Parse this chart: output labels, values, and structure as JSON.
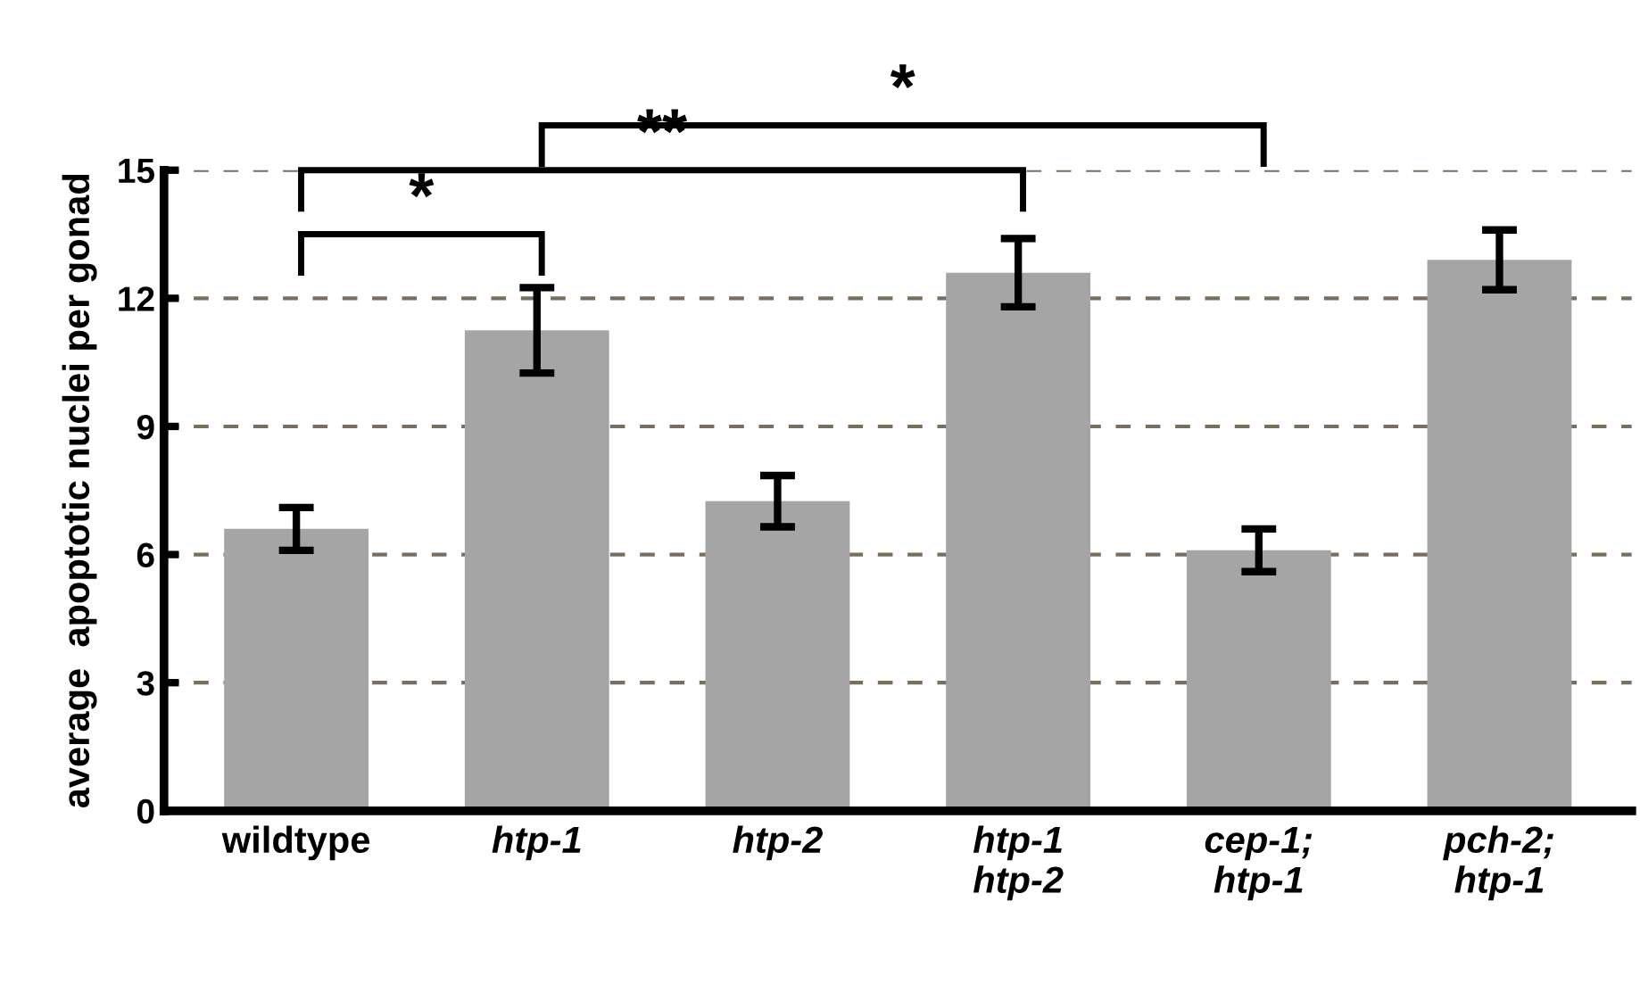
{
  "chart_data": {
    "type": "bar",
    "ylabel": "average  apoptotic nuclei per gonad",
    "categories": [
      "wildtype",
      "htp-1",
      "htp-2",
      "htp-1\nhtp-2",
      "cep-1;\nhtp-1",
      "pch-2;\nhtp-1"
    ],
    "values": [
      6.6,
      11.25,
      7.25,
      12.6,
      6.1,
      12.9
    ],
    "errors": [
      0.5,
      1.0,
      0.6,
      0.8,
      0.5,
      0.7
    ],
    "color": "#a5a5a5",
    "ylim": [
      0,
      15
    ],
    "yticks": [
      0,
      3,
      6,
      9,
      12,
      15
    ],
    "grid": "y",
    "annotations": [
      "*",
      "**",
      "*"
    ]
  }
}
